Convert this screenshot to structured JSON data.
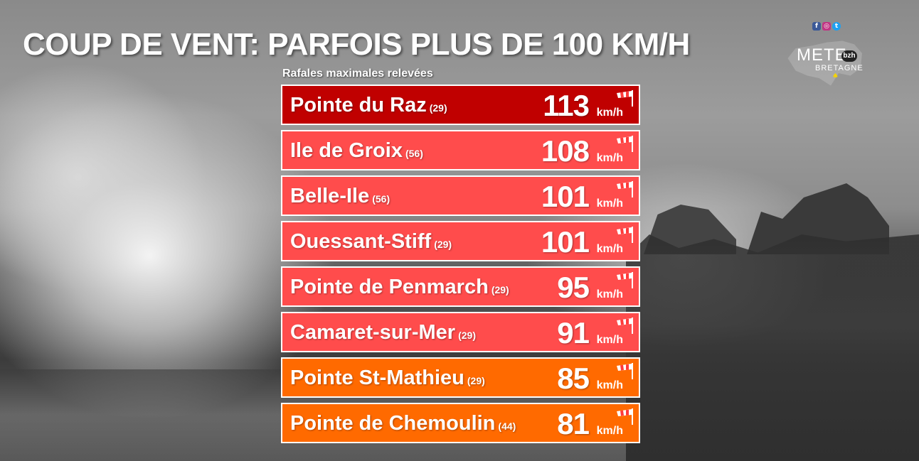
{
  "title": "COUP DE VENT: PARFOIS PLUS DE 100 KM/H",
  "subtitle": "Rafales maximales relevées",
  "unit": "km/h",
  "logo": {
    "text_top": "METE",
    "badge": "bzh",
    "text_bottom": "BRETAGNE"
  },
  "social_icons": [
    "facebook-icon",
    "instagram-icon",
    "twitter-icon"
  ],
  "stations": [
    {
      "name": "Pointe du Raz",
      "dept": "(29)",
      "value": "113",
      "color": "#c00000"
    },
    {
      "name": "Ile de Groix",
      "dept": "(56)",
      "value": "108",
      "color": "#ff4c4c"
    },
    {
      "name": "Belle-Ile",
      "dept": "(56)",
      "value": "101",
      "color": "#ff4c4c"
    },
    {
      "name": "Ouessant-Stiff",
      "dept": "(29)",
      "value": "101",
      "color": "#ff4c4c"
    },
    {
      "name": "Pointe de Penmarch",
      "dept": "(29)",
      "value": "95",
      "color": "#ff4c4c"
    },
    {
      "name": "Camaret-sur-Mer",
      "dept": "(29)",
      "value": "91",
      "color": "#ff4c4c"
    },
    {
      "name": "Pointe St-Mathieu",
      "dept": "(29)",
      "value": "85",
      "color": "#ff6a00"
    },
    {
      "name": "Pointe de Chemoulin",
      "dept": "(44)",
      "value": "81",
      "color": "#ff6a00"
    }
  ]
}
